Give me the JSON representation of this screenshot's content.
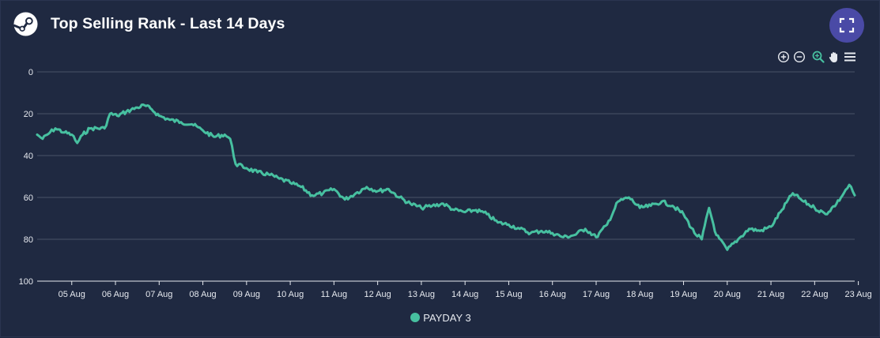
{
  "header": {
    "title": "Top Selling Rank - Last 14 Days",
    "logo_icon": "steam-logo-icon",
    "fullscreen_icon": "fullscreen-expand-icon"
  },
  "toolbar": {
    "icons": [
      "zoom-in-icon",
      "zoom-out-icon",
      "zoom-selection-icon",
      "pan-hand-icon",
      "menu-icon"
    ]
  },
  "colors": {
    "background": "#1f2941",
    "series": "#47c0a0",
    "grid": "#4a5468",
    "accent_button": "#4a4aa6"
  },
  "chart_data": {
    "type": "line",
    "title": "Top Selling Rank - Last 14 Days",
    "xlabel": "",
    "ylabel": "",
    "y_reversed": true,
    "ylim": [
      0,
      100
    ],
    "yticks": [
      "0",
      "20",
      "40",
      "60",
      "80",
      "100"
    ],
    "x_range": [
      "2024-08-04 17:00",
      "2024-08-23 10:00"
    ],
    "xtick_labels": [
      "05 Aug",
      "06 Aug",
      "07 Aug",
      "08 Aug",
      "09 Aug",
      "10 Aug",
      "11 Aug",
      "12 Aug",
      "13 Aug",
      "14 Aug",
      "15 Aug",
      "16 Aug",
      "17 Aug",
      "18 Aug",
      "19 Aug",
      "20 Aug",
      "21 Aug",
      "22 Aug",
      "23 Aug"
    ],
    "grid": true,
    "legend_position": "bottom-center",
    "series": [
      {
        "name": "PAYDAY 3",
        "color": "#47c0a0",
        "points": [
          [
            "2024-08-04 17:00",
            30
          ],
          [
            "2024-08-04 20:00",
            32
          ],
          [
            "2024-08-05 00:00",
            29
          ],
          [
            "2024-08-05 03:00",
            27
          ],
          [
            "2024-08-05 08:00",
            29
          ],
          [
            "2024-08-05 12:00",
            30
          ],
          [
            "2024-08-05 15:00",
            34
          ],
          [
            "2024-08-05 18:00",
            30
          ],
          [
            "2024-08-05 22:00",
            27
          ],
          [
            "2024-08-06 06:00",
            27
          ],
          [
            "2024-08-06 09:00",
            20
          ],
          [
            "2024-08-06 13:00",
            21
          ],
          [
            "2024-08-06 18:00",
            19
          ],
          [
            "2024-08-07 00:00",
            17
          ],
          [
            "2024-08-07 04:00",
            16
          ],
          [
            "2024-08-07 08:00",
            18
          ],
          [
            "2024-08-07 12:00",
            21
          ],
          [
            "2024-08-07 18:00",
            23
          ],
          [
            "2024-08-08 00:00",
            24
          ],
          [
            "2024-08-08 06:00",
            25
          ],
          [
            "2024-08-08 12:00",
            28
          ],
          [
            "2024-08-08 18:00",
            31
          ],
          [
            "2024-08-09 00:00",
            30
          ],
          [
            "2024-08-09 03:00",
            32
          ],
          [
            "2024-08-09 06:00",
            44
          ],
          [
            "2024-08-09 12:00",
            46
          ],
          [
            "2024-08-09 18:00",
            48
          ],
          [
            "2024-08-10 00:00",
            49
          ],
          [
            "2024-08-10 06:00",
            51
          ],
          [
            "2024-08-10 12:00",
            53
          ],
          [
            "2024-08-10 18:00",
            55
          ],
          [
            "2024-08-11 00:00",
            59
          ],
          [
            "2024-08-11 06:00",
            58
          ],
          [
            "2024-08-11 12:00",
            56
          ],
          [
            "2024-08-11 18:00",
            61
          ],
          [
            "2024-08-12 00:00",
            58
          ],
          [
            "2024-08-12 06:00",
            55
          ],
          [
            "2024-08-12 12:00",
            57
          ],
          [
            "2024-08-12 18:00",
            56
          ],
          [
            "2024-08-13 00:00",
            60
          ],
          [
            "2024-08-13 06:00",
            63
          ],
          [
            "2024-08-13 12:00",
            65
          ],
          [
            "2024-08-13 18:00",
            64
          ],
          [
            "2024-08-14 00:00",
            63
          ],
          [
            "2024-08-14 06:00",
            66
          ],
          [
            "2024-08-14 12:00",
            67
          ],
          [
            "2024-08-14 18:00",
            66
          ],
          [
            "2024-08-15 00:00",
            68
          ],
          [
            "2024-08-15 06:00",
            72
          ],
          [
            "2024-08-15 12:00",
            73
          ],
          [
            "2024-08-15 18:00",
            75
          ],
          [
            "2024-08-16 00:00",
            77
          ],
          [
            "2024-08-16 06:00",
            76
          ],
          [
            "2024-08-16 12:00",
            77
          ],
          [
            "2024-08-16 18:00",
            79
          ],
          [
            "2024-08-17 00:00",
            78
          ],
          [
            "2024-08-17 06:00",
            75
          ],
          [
            "2024-08-17 12:00",
            79
          ],
          [
            "2024-08-17 18:00",
            73
          ],
          [
            "2024-08-18 00:00",
            62
          ],
          [
            "2024-08-18 06:00",
            60
          ],
          [
            "2024-08-18 12:00",
            65
          ],
          [
            "2024-08-18 18:00",
            64
          ],
          [
            "2024-08-19 00:00",
            62
          ],
          [
            "2024-08-19 06:00",
            64
          ],
          [
            "2024-08-19 12:00",
            68
          ],
          [
            "2024-08-19 18:00",
            77
          ],
          [
            "2024-08-19 22:00",
            80
          ],
          [
            "2024-08-20 02:00",
            65
          ],
          [
            "2024-08-20 06:00",
            78
          ],
          [
            "2024-08-20 12:00",
            85
          ],
          [
            "2024-08-20 18:00",
            80
          ],
          [
            "2024-08-21 00:00",
            75
          ],
          [
            "2024-08-21 06:00",
            76
          ],
          [
            "2024-08-21 12:00",
            74
          ],
          [
            "2024-08-21 18:00",
            66
          ],
          [
            "2024-08-22 00:00",
            58
          ],
          [
            "2024-08-22 06:00",
            62
          ],
          [
            "2024-08-22 12:00",
            65
          ],
          [
            "2024-08-22 18:00",
            68
          ],
          [
            "2024-08-23 00:00",
            63
          ],
          [
            "2024-08-23 04:00",
            58
          ],
          [
            "2024-08-23 07:00",
            54
          ],
          [
            "2024-08-23 10:00",
            59
          ]
        ]
      }
    ]
  }
}
